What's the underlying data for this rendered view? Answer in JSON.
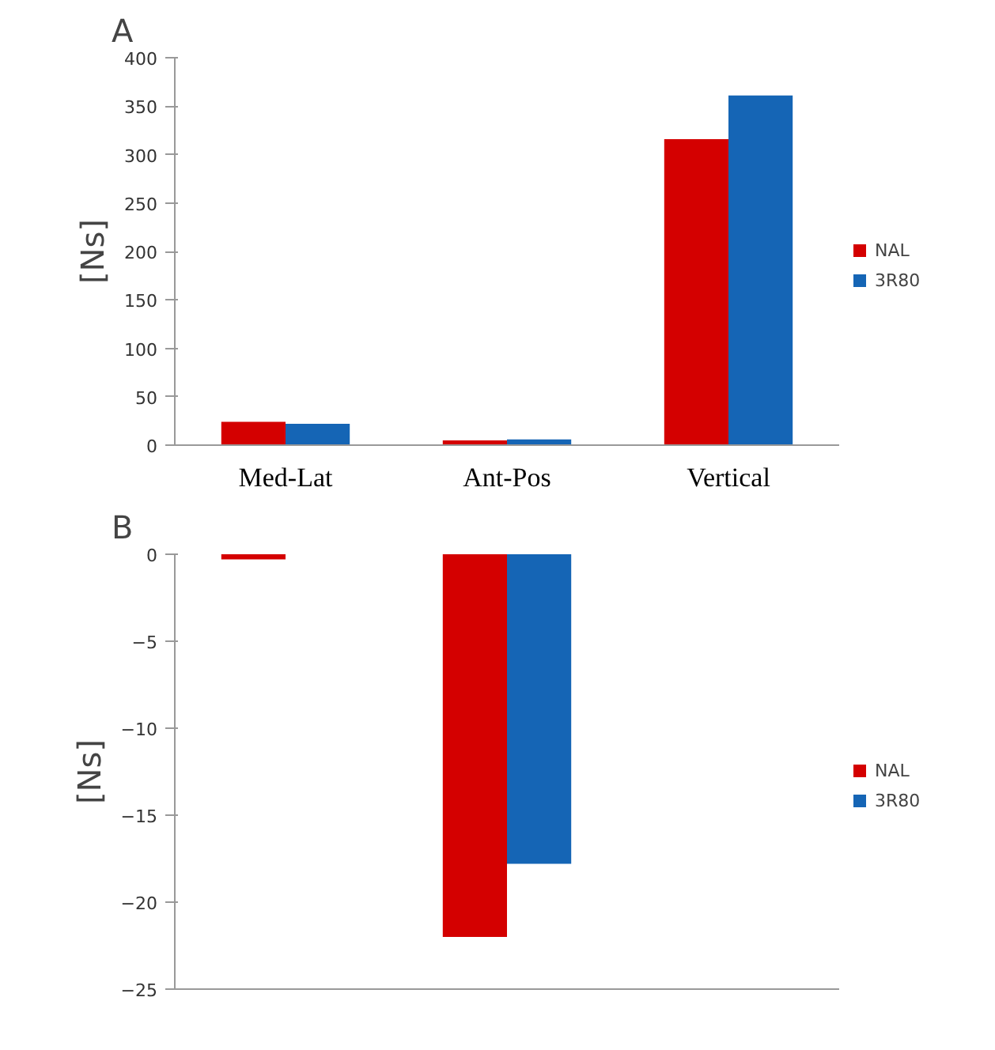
{
  "chart_data": [
    {
      "type": "bar",
      "title": "A",
      "ylabel": "[Ns]",
      "categories": [
        "Med-Lat",
        "Ant-Pos",
        "Vertical"
      ],
      "series": [
        {
          "name": "NAL",
          "color": "#d40000",
          "values": [
            24,
            5,
            316
          ]
        },
        {
          "name": "3R80",
          "color": "#1565b5",
          "values": [
            22,
            6,
            361
          ]
        }
      ],
      "ylim": [
        0,
        400
      ],
      "yticks": [
        0,
        50,
        100,
        150,
        200,
        250,
        300,
        350,
        400
      ],
      "grid": false,
      "legend": "right"
    },
    {
      "type": "bar",
      "title": "B",
      "ylabel": "[Ns]",
      "categories": [
        null,
        null,
        null
      ],
      "series": [
        {
          "name": "NAL",
          "color": "#d40000",
          "values": [
            -0.3,
            -22,
            0
          ]
        },
        {
          "name": "3R80",
          "color": "#1565b5",
          "values": [
            0,
            -17.8,
            0
          ]
        }
      ],
      "ylim": [
        -25,
        0
      ],
      "yticks": [
        -25,
        -20,
        -15,
        -10,
        -5,
        0
      ],
      "grid": false,
      "legend": "right",
      "tick_labels": "y"
    }
  ]
}
